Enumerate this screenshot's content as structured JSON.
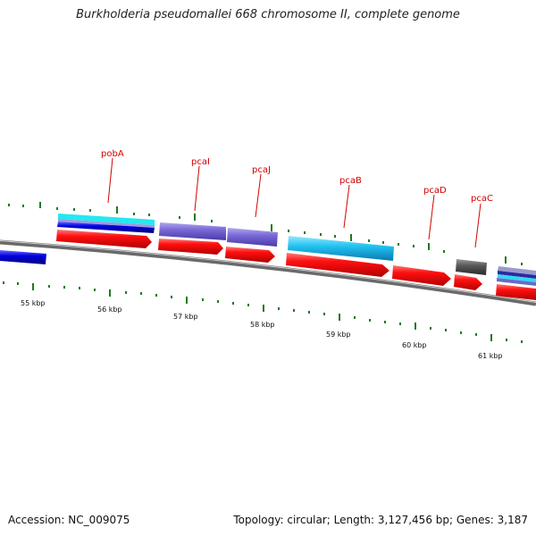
{
  "title": "Burkholderia pseudomallei 668 chromosome II, complete genome",
  "footer": {
    "accession": "Accession: NC_009075",
    "summary": "Topology: circular; Length: 3,127,456 bp; Genes: 3,187"
  },
  "colors": {
    "backbone": "#7a7a7a",
    "tick": "#1f7a1f",
    "label": "#d40000",
    "gene_red": "#ee0000",
    "cds_purple": "#7060d0",
    "cds_cyan": "#20c0f0",
    "blue": "#0000dd",
    "gray": "#555555"
  },
  "gene_labels": [
    {
      "id": "pobA",
      "text": "pobA"
    },
    {
      "id": "pcaI",
      "text": "pcaI"
    },
    {
      "id": "pcaJ",
      "text": "pcaJ"
    },
    {
      "id": "pcaB",
      "text": "pcaB"
    },
    {
      "id": "pcaD",
      "text": "pcaD"
    },
    {
      "id": "pcaC",
      "text": "pcaC"
    }
  ],
  "kbp_labels": [
    "55 kbp",
    "56 kbp",
    "57 kbp",
    "58 kbp",
    "59 kbp",
    "60 kbp",
    "61 kbp"
  ]
}
